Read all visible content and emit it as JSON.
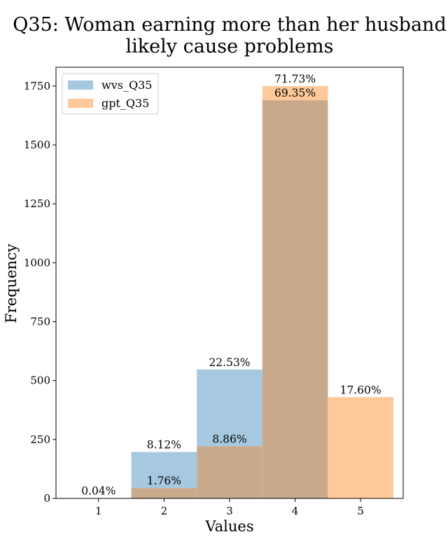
{
  "chart_data": {
    "type": "bar",
    "title_lines": [
      "Q35: Woman earning more than her husband",
      "likely cause problems"
    ],
    "xlabel": "Values",
    "ylabel": "Frequency",
    "categories": [
      "1",
      "2",
      "3",
      "4",
      "5"
    ],
    "x_ticks": [
      "1",
      "2",
      "3",
      "4",
      "5"
    ],
    "y_ticks": [
      "0",
      "250",
      "500",
      "750",
      "1000",
      "1250",
      "1500",
      "1750"
    ],
    "ylim": [
      0,
      1830
    ],
    "xlim": [
      0.35,
      5.65
    ],
    "series": [
      {
        "name": "wvs_Q35",
        "color": "#a6c8e0",
        "values": [
          1,
          197,
          547,
          1690,
          0
        ],
        "labels": [
          "0.04%",
          "8.12%",
          "22.53%",
          "69.35%",
          ""
        ]
      },
      {
        "name": "gpt_Q35",
        "color": "#ffc999",
        "values": [
          0,
          44,
          222,
          1750,
          430
        ],
        "labels": [
          "",
          "1.76%",
          "8.86%",
          "71.73%",
          "17.60%"
        ]
      }
    ],
    "overlap_color": "#c9a98c",
    "legend": {
      "position": "top-left",
      "entries": [
        "wvs_Q35",
        "gpt_Q35"
      ]
    }
  }
}
